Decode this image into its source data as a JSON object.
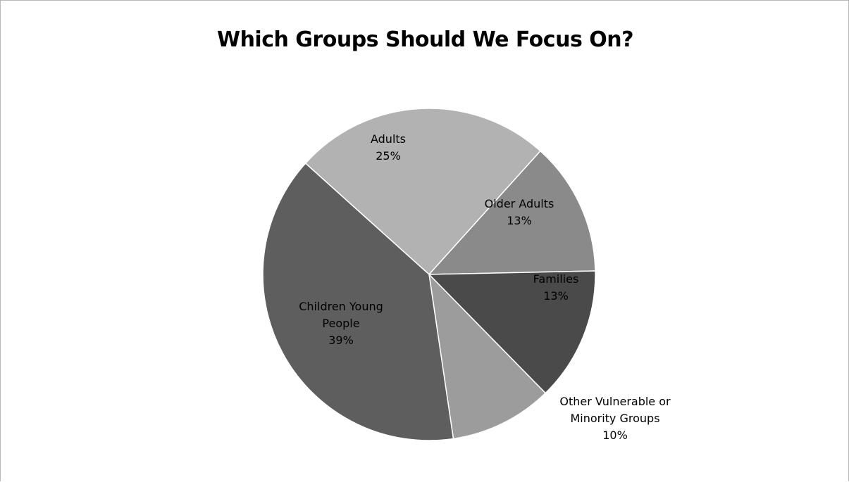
{
  "chart_data": {
    "type": "pie",
    "title": "Which Groups Should We Focus On?",
    "slices": [
      {
        "name": "Adults",
        "label_lines": [
          "Adults",
          "25%"
        ],
        "value": 25,
        "color": "#b2b2b2",
        "label_color": "#000000"
      },
      {
        "name": "Older Adults",
        "label_lines": [
          "Older Adults",
          "13%"
        ],
        "value": 13,
        "color": "#8a8a8a",
        "label_color": "#000000"
      },
      {
        "name": "Families",
        "label_lines": [
          "Families",
          "13%"
        ],
        "value": 13,
        "color": "#4a4a4a",
        "label_color": "#000000"
      },
      {
        "name": "Other Vulnerable or Minority Groups",
        "label_lines": [
          "Other Vulnerable or",
          "Minority Groups",
          "10%"
        ],
        "value": 10,
        "color": "#9c9c9c",
        "label_color": "#000000"
      },
      {
        "name": "Children Young People",
        "label_lines": [
          "Children Young",
          "People",
          "39%"
        ],
        "value": 39,
        "color": "#5e5e5e",
        "label_color": "#000000"
      }
    ],
    "legend": "none"
  }
}
